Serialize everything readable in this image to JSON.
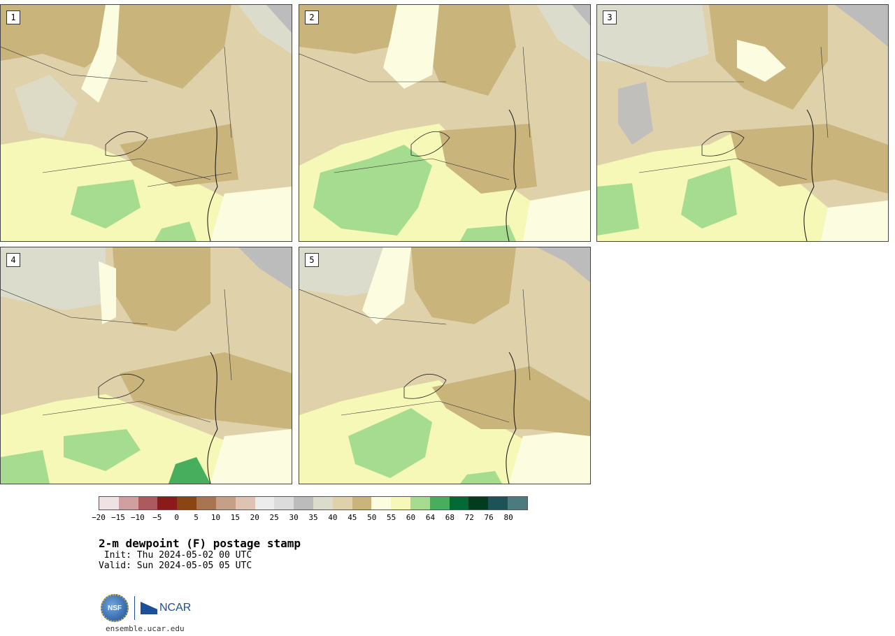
{
  "panels": [
    {
      "label": "1"
    },
    {
      "label": "2"
    },
    {
      "label": "3"
    },
    {
      "label": "4"
    },
    {
      "label": "5"
    }
  ],
  "colorbar": {
    "colors": [
      "#efe2e2",
      "#d0a0a0",
      "#ad5a5f",
      "#8b1a1a",
      "#8b4513",
      "#a97452",
      "#c59f86",
      "#dfc3b2",
      "#ececec",
      "#dcdcdc",
      "#bcbcbc",
      "#dcdccc",
      "#dfd2ab",
      "#c9b47c",
      "#fcfde0",
      "#f5f8b6",
      "#a6dc8f",
      "#46ae5c",
      "#016b33",
      "#033b1e",
      "#1d5257",
      "#4b7b7e"
    ],
    "ticks": [
      "−20",
      "−15",
      "−10",
      "−5",
      "0",
      "5",
      "10",
      "15",
      "20",
      "25",
      "30",
      "35",
      "40",
      "45",
      "50",
      "55",
      "60",
      "64",
      "68",
      "72",
      "76",
      "80"
    ]
  },
  "title": "2-m dewpoint (F) postage stamp",
  "init": " Init: Thu 2024-05-02 00 UTC",
  "valid": "Valid: Sun 2024-05-05 05 UTC",
  "logo": {
    "nsf_text": "NSF",
    "ncar_text": "NCAR"
  },
  "site": "ensemble.ucar.edu"
}
